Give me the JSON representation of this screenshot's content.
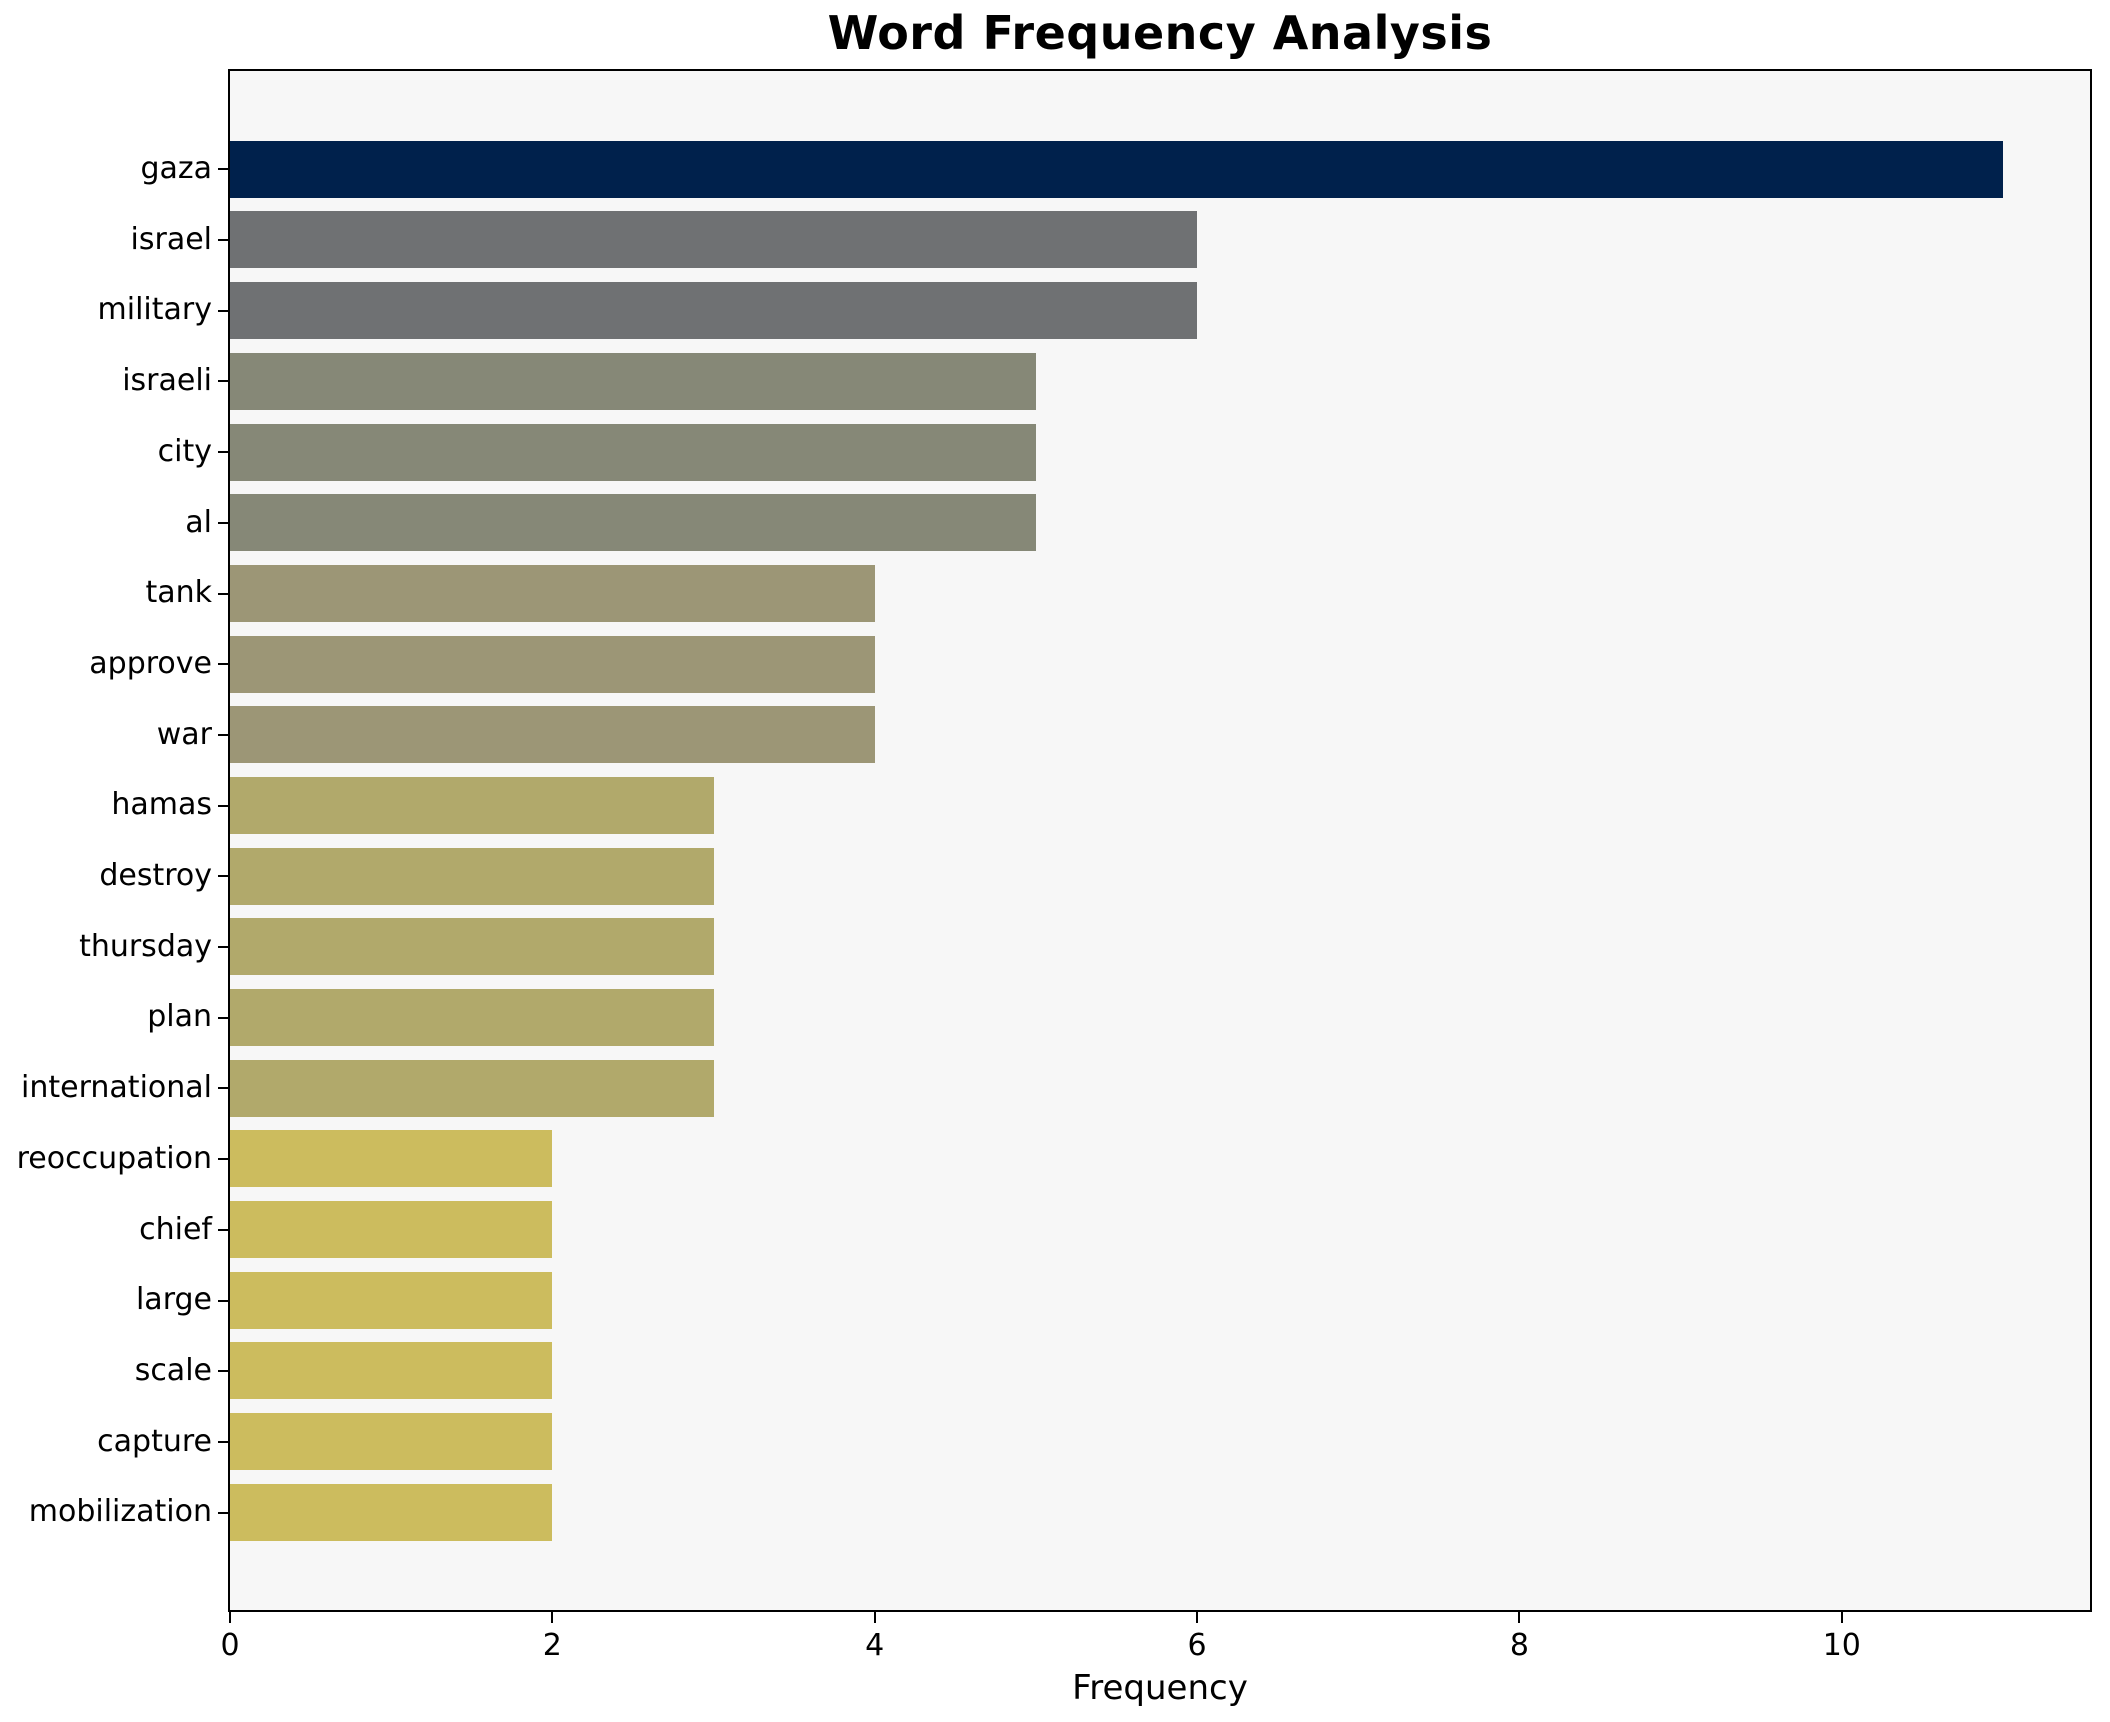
{
  "figure": {
    "background": "#ffffff",
    "plot_background": "#f7f7f7",
    "spine_color": "#000000",
    "text_color": "#000000"
  },
  "chart_data": {
    "type": "bar",
    "orientation": "horizontal",
    "title": "Word Frequency Analysis",
    "xlabel": "Frequency",
    "ylabel": "",
    "categories": [
      "gaza",
      "israel",
      "military",
      "israeli",
      "city",
      "al",
      "tank",
      "approve",
      "war",
      "hamas",
      "destroy",
      "thursday",
      "plan",
      "international",
      "reoccupation",
      "chief",
      "large",
      "scale",
      "capture",
      "mobilization"
    ],
    "values": [
      11,
      6,
      6,
      5,
      5,
      5,
      4,
      4,
      4,
      3,
      3,
      3,
      3,
      3,
      2,
      2,
      2,
      2,
      2,
      2
    ],
    "bar_colors": [
      "#00214c",
      "#6f7173",
      "#6f7173",
      "#868877",
      "#868877",
      "#868877",
      "#9c9676",
      "#9c9676",
      "#9c9676",
      "#b1a96b",
      "#b1a96b",
      "#b1a96b",
      "#b1a96b",
      "#b1a96b",
      "#ccbc5e",
      "#ccbc5e",
      "#ccbc5e",
      "#ccbc5e",
      "#ccbc5e",
      "#ccbc5e"
    ],
    "xlim": [
      0,
      11.54
    ],
    "xticks": [
      0,
      2,
      4,
      6,
      8,
      10
    ],
    "grid": false,
    "legend": false
  }
}
